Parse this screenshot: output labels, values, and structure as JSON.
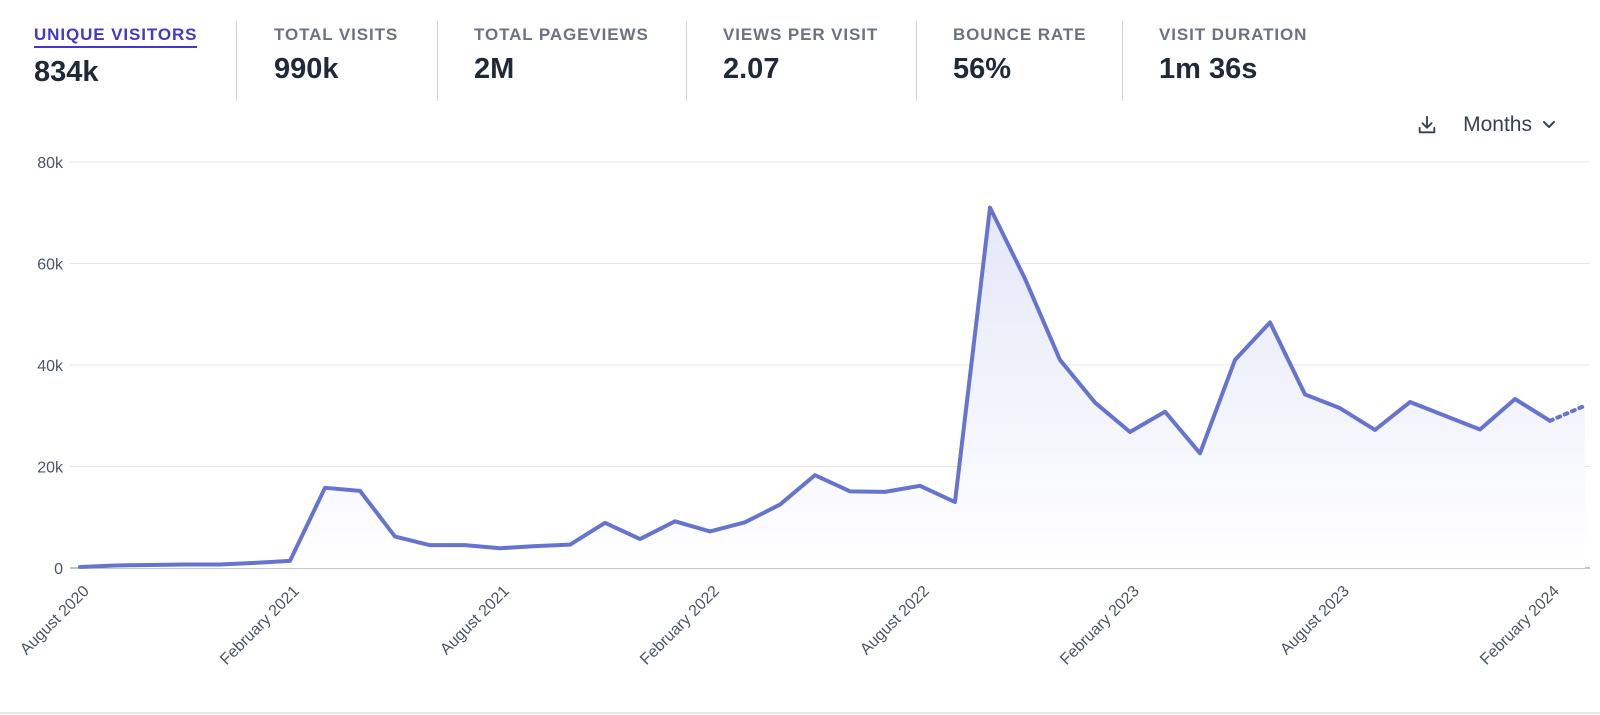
{
  "metrics": [
    {
      "label": "UNIQUE VISITORS",
      "value": "834k",
      "active": true
    },
    {
      "label": "TOTAL VISITS",
      "value": "990k",
      "active": false
    },
    {
      "label": "TOTAL PAGEVIEWS",
      "value": "2M",
      "active": false
    },
    {
      "label": "VIEWS PER VISIT",
      "value": "2.07",
      "active": false
    },
    {
      "label": "BOUNCE RATE",
      "value": "56%",
      "active": false
    },
    {
      "label": "VISIT DURATION",
      "value": "1m 36s",
      "active": false
    }
  ],
  "controls": {
    "download_icon": "download-icon",
    "interval_label": "Months",
    "interval_icon": "chevron-down-icon"
  },
  "colors": {
    "line": "#6674d0",
    "area_top": "#e4e7f7",
    "grid": "#e5e7eb",
    "active_metric": "#4338ca"
  },
  "chart_data": {
    "type": "area",
    "title": "",
    "xlabel": "",
    "ylabel": "",
    "ylim": [
      0,
      80000
    ],
    "yticks": [
      0,
      20000,
      40000,
      60000,
      80000
    ],
    "ytick_labels": [
      "0",
      "20k",
      "40k",
      "60k",
      "80k"
    ],
    "xtick_labels": [
      "August 2020",
      "February 2021",
      "August 2021",
      "February 2022",
      "August 2022",
      "February 2023",
      "August 2023",
      "February 2024"
    ],
    "grid": true,
    "x": [
      "2020-08",
      "2020-09",
      "2020-10",
      "2020-11",
      "2020-12",
      "2021-01",
      "2021-02",
      "2021-03",
      "2021-04",
      "2021-05",
      "2021-06",
      "2021-07",
      "2021-08",
      "2021-09",
      "2021-10",
      "2021-11",
      "2021-12",
      "2022-01",
      "2022-02",
      "2022-03",
      "2022-04",
      "2022-05",
      "2022-06",
      "2022-07",
      "2022-08",
      "2022-09",
      "2022-10",
      "2022-11",
      "2022-12",
      "2023-01",
      "2023-02",
      "2023-03",
      "2023-04",
      "2023-05",
      "2023-06",
      "2023-07",
      "2023-08",
      "2023-09",
      "2023-10",
      "2023-11",
      "2023-12",
      "2024-01",
      "2024-02",
      "2024-03"
    ],
    "values": [
      200,
      500,
      600,
      700,
      700,
      1000,
      1400,
      15800,
      15200,
      6200,
      4500,
      4500,
      3900,
      4300,
      4600,
      8900,
      5700,
      9200,
      7200,
      9000,
      12500,
      18300,
      15100,
      15000,
      16200,
      13000,
      71000,
      57000,
      41000,
      32600,
      26800,
      30800,
      22600,
      41000,
      48400,
      34200,
      31500,
      27200,
      32700,
      30000,
      27300,
      33300,
      29000,
      32000
    ],
    "projected_from_index": 42
  }
}
